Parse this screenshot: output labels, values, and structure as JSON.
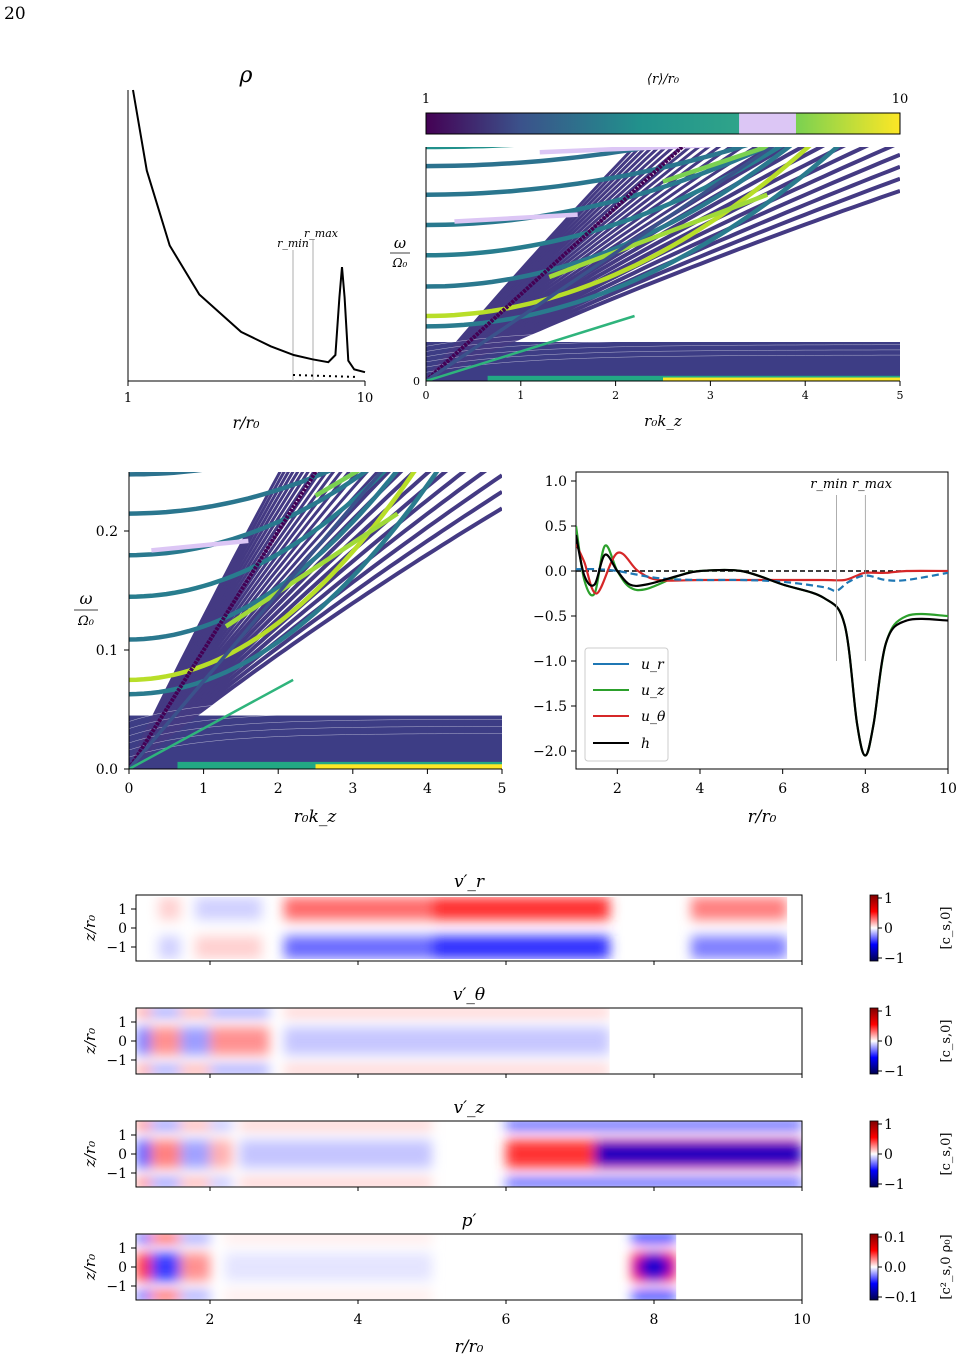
{
  "page": {
    "number": "20"
  },
  "rho_panel": {
    "title": "ρ",
    "xlabel": "r/r₀",
    "x_ticks": [
      "1",
      "10"
    ],
    "marker_min": "r_min",
    "marker_max": "r_max",
    "chart_data": {
      "type": "line",
      "x_scale": "log",
      "xlim": [
        1,
        10
      ],
      "series": [
        {
          "x": [
            1.05,
            1.2,
            1.5,
            2.0,
            3.0,
            4.0,
            5.0,
            6.0,
            7.0,
            7.5,
            7.8,
            8.0,
            8.2,
            8.5,
            9.0,
            10.0
          ],
          "y": [
            1.0,
            0.72,
            0.46,
            0.29,
            0.16,
            0.11,
            0.08,
            0.065,
            0.055,
            0.08,
            0.28,
            0.385,
            0.28,
            0.06,
            0.03,
            0.02
          ]
        }
      ]
    }
  },
  "colorbar_top": {
    "label": "⟨r⟩/r₀",
    "min_label": "1",
    "max_label": "10",
    "stops": [
      "#440154",
      "#3b528b",
      "#21918c",
      "#2a9d8f",
      "#36b37e",
      "#dcc6f5",
      "#7ad151",
      "#b8de29",
      "#fde725"
    ]
  },
  "dispersion_top": {
    "ylabel_num": "ω",
    "ylabel_den": "Ω₀",
    "xlabel": "r₀k_z",
    "x_ticks": [
      "0",
      "1",
      "2",
      "3",
      "4",
      "5"
    ],
    "y_ticks": [
      "0"
    ],
    "chart_data": {
      "type": "scatter",
      "xlim": [
        0,
        5
      ],
      "ylim": [
        0,
        0.27
      ]
    }
  },
  "dispersion_zoom": {
    "ylabel_num": "ω",
    "ylabel_den": "Ω₀",
    "xlabel": "r₀k_z",
    "x_ticks": [
      "0",
      "1",
      "2",
      "3",
      "4",
      "5"
    ],
    "y_ticks": [
      "0.0",
      "0.1",
      "0.2"
    ],
    "chart_data": {
      "type": "scatter",
      "xlim": [
        0,
        5
      ],
      "ylim": [
        0,
        0.25
      ]
    }
  },
  "eigen_panel": {
    "xlabel": "r/r₀",
    "x_ticks": [
      "2",
      "4",
      "6",
      "8",
      "10"
    ],
    "y_ticks": [
      "1.0",
      "0.5",
      "0.0",
      "−0.5",
      "−1.0",
      "−1.5",
      "−2.0"
    ],
    "marker_min": "r_min",
    "marker_max": "r_max",
    "legend": [
      {
        "label": "u_r",
        "color": "#1f77b4"
      },
      {
        "label": "u_z",
        "color": "#2ca02c"
      },
      {
        "label": "u_θ",
        "color": "#d62728"
      },
      {
        "label": "h",
        "color": "#000000"
      }
    ],
    "chart_data": {
      "type": "line",
      "xlim": [
        1,
        10
      ],
      "ylim": [
        -2.2,
        1.1
      ],
      "series": [
        {
          "name": "u_r",
          "x": [
            1,
            1.5,
            2,
            3,
            4,
            5,
            6,
            7,
            7.3,
            7.6,
            8,
            8.5,
            9,
            10
          ],
          "y": [
            0.02,
            0.02,
            0.0,
            -0.08,
            -0.1,
            -0.1,
            -0.12,
            -0.18,
            -0.22,
            -0.12,
            -0.05,
            -0.1,
            -0.1,
            -0.02
          ]
        },
        {
          "name": "u_z",
          "x": [
            1,
            1.2,
            1.45,
            1.7,
            2,
            2.3,
            2.7,
            3.5,
            4,
            5,
            6,
            7,
            7.5,
            7.8,
            8,
            8.2,
            8.5,
            9,
            10
          ],
          "y": [
            0.5,
            -0.1,
            -0.25,
            0.28,
            0.0,
            -0.18,
            -0.2,
            -0.05,
            0.0,
            0.0,
            -0.15,
            -0.3,
            -0.6,
            -1.7,
            -2.05,
            -1.7,
            -0.8,
            -0.5,
            -0.5
          ]
        },
        {
          "name": "u_θ",
          "x": [
            1,
            1.2,
            1.5,
            2,
            2.5,
            3,
            4,
            5,
            6,
            7,
            7.5,
            7.8,
            8,
            8.5,
            9,
            10
          ],
          "y": [
            0.3,
            0.1,
            -0.25,
            0.2,
            0.0,
            -0.1,
            -0.1,
            -0.1,
            -0.1,
            -0.1,
            -0.1,
            -0.05,
            -0.02,
            -0.02,
            0.0,
            0.0
          ]
        },
        {
          "name": "h",
          "x": [
            1,
            1.2,
            1.45,
            1.7,
            2,
            2.3,
            2.7,
            3.5,
            4,
            5,
            6,
            7,
            7.5,
            7.8,
            8,
            8.2,
            8.5,
            9,
            10
          ],
          "y": [
            0.4,
            -0.05,
            -0.15,
            0.18,
            0.0,
            -0.15,
            -0.15,
            -0.05,
            0.0,
            0.0,
            -0.15,
            -0.3,
            -0.6,
            -1.7,
            -2.05,
            -1.7,
            -0.8,
            -0.55,
            -0.55
          ]
        }
      ]
    }
  },
  "maps": {
    "xlabel": "r/r₀",
    "x_ticks": [
      "2",
      "4",
      "6",
      "8",
      "10"
    ],
    "y_ticks": [
      "1",
      "0",
      "−1"
    ],
    "ylabel": "z/r₀",
    "panels": [
      {
        "title": "v′_r",
        "cb_ticks": [
          "1",
          "0",
          "−1"
        ],
        "cb_label": "[c_s,0]"
      },
      {
        "title": "v′_θ",
        "cb_ticks": [
          "1",
          "0",
          "−1"
        ],
        "cb_label": "[c_s,0]"
      },
      {
        "title": "v′_z",
        "cb_ticks": [
          "1",
          "0",
          "−1"
        ],
        "cb_label": "[c_s,0]"
      },
      {
        "title": "p′",
        "cb_ticks": [
          "0.1",
          "0.0",
          "−0.1"
        ],
        "cb_label": "[c²_s,0 ρ₀]"
      }
    ]
  }
}
